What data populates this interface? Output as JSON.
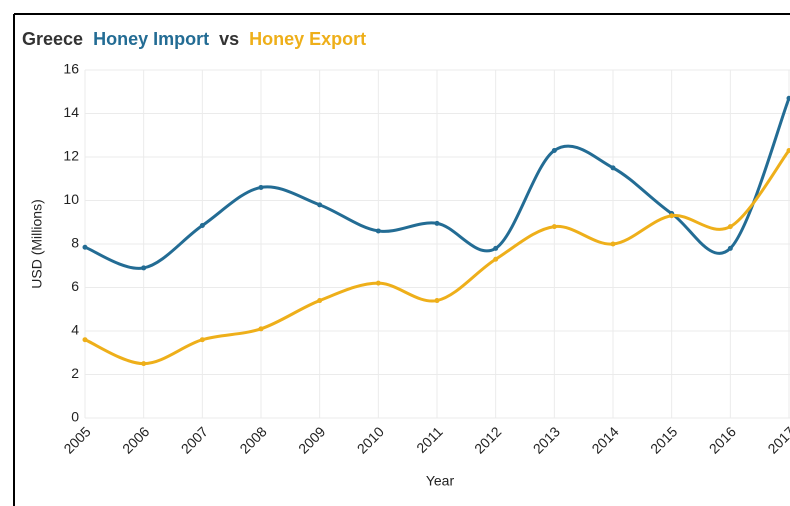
{
  "chart_data": {
    "type": "line",
    "title_prefix": "Greece",
    "title_joiner": "vs",
    "x_label": "Year",
    "y_label": "USD (Millions)",
    "x": [
      2005,
      2006,
      2007,
      2008,
      2009,
      2010,
      2011,
      2012,
      2013,
      2014,
      2015,
      2016,
      2017
    ],
    "xlim": [
      2005,
      2017
    ],
    "xticks": [
      2005,
      2006,
      2007,
      2008,
      2009,
      2010,
      2011,
      2012,
      2013,
      2014,
      2015,
      2016,
      2017
    ],
    "ylim": [
      0,
      16
    ],
    "yticks": [
      0,
      2,
      4,
      6,
      8,
      10,
      12,
      14,
      16
    ],
    "grid": true,
    "smooth": true,
    "series": [
      {
        "name": "Honey Import",
        "color": "#236c94",
        "values": [
          7.85,
          6.9,
          8.85,
          10.6,
          9.8,
          8.6,
          8.95,
          7.8,
          12.3,
          11.5,
          9.4,
          7.8,
          14.7
        ]
      },
      {
        "name": "Honey Export",
        "color": "#eeaf1a",
        "values": [
          3.6,
          2.5,
          3.6,
          4.1,
          5.4,
          6.2,
          5.4,
          7.3,
          8.8,
          8.0,
          9.3,
          8.8,
          12.3
        ]
      }
    ]
  }
}
